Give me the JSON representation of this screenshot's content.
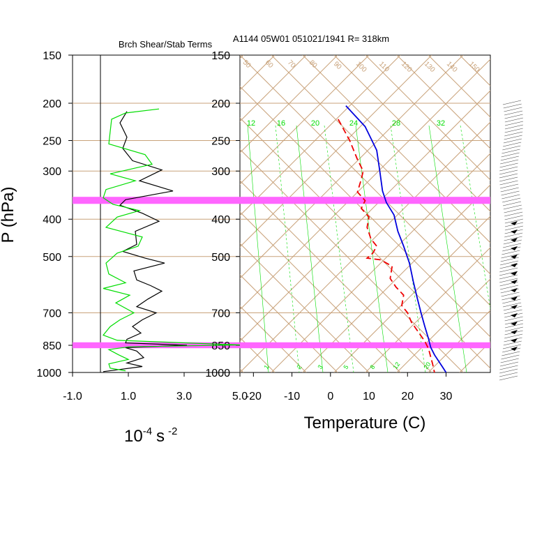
{
  "header": {
    "left_title": "Brch Shear/Stab Terms",
    "right_title": "A1144 05W01 051021/1941 R= 318km"
  },
  "axes": {
    "pressure_label": "P (hPa)",
    "pressure_ticks": [
      "150",
      "200",
      "250",
      "300",
      "400",
      "500",
      "700",
      "850",
      "1000"
    ],
    "units_label_main": "10",
    "units_label_exp": "-4",
    "units_label_s": "s",
    "units_label_s_exp": "-2",
    "temperature_label": "Temperature (C)"
  },
  "colors": {
    "grid": "#c8a27a",
    "band": "#ff66ff",
    "green": "#00dd00",
    "red": "#ee0000",
    "blue": "#0000dd",
    "black": "#000000"
  },
  "chart_data": [
    {
      "type": "line",
      "title": "Brch Shear/Stab Terms",
      "xlabel": "10^-4 s^-2",
      "ylabel": "P (hPa)",
      "xlim": [
        -1.0,
        5.0
      ],
      "x_ticks": [
        "-1.0",
        "1.0",
        "3.0",
        "5.0"
      ],
      "y_scale": "log",
      "ylim": [
        1000,
        150
      ],
      "series": [
        {
          "color": "#000000",
          "points": [
            [
              0.95,
              210
            ],
            [
              0.7,
              225
            ],
            [
              0.95,
              245
            ],
            [
              0.8,
              262
            ],
            [
              1.15,
              282
            ],
            [
              2.2,
              298
            ],
            [
              1.4,
              318
            ],
            [
              2.6,
              338
            ],
            [
              0.9,
              356
            ],
            [
              0.7,
              368
            ],
            [
              1.5,
              386
            ],
            [
              2.1,
              405
            ],
            [
              1.25,
              430
            ],
            [
              1.3,
              465
            ],
            [
              0.8,
              485
            ],
            [
              1.6,
              505
            ],
            [
              2.3,
              520
            ],
            [
              1.2,
              545
            ],
            [
              1.3,
              575
            ],
            [
              1.8,
              595
            ],
            [
              2.2,
              615
            ],
            [
              1.7,
              645
            ],
            [
              1.3,
              675
            ],
            [
              2.0,
              700
            ],
            [
              1.5,
              730
            ],
            [
              1.15,
              760
            ],
            [
              1.45,
              790
            ],
            [
              0.95,
              820
            ],
            [
              0.9,
              838
            ],
            [
              3.1,
              850
            ],
            [
              0.9,
              862
            ],
            [
              1.3,
              880
            ],
            [
              1.55,
              915
            ],
            [
              0.95,
              945
            ],
            [
              1.5,
              965
            ],
            [
              0.1,
              995
            ]
          ]
        },
        {
          "color": "#00dd00",
          "points": [
            [
              2.1,
              207
            ],
            [
              0.9,
              212
            ],
            [
              0.4,
              220
            ],
            [
              0.3,
              255
            ],
            [
              1.6,
              272
            ],
            [
              1.85,
              288
            ],
            [
              1.4,
              293
            ],
            [
              0.35,
              305
            ],
            [
              1.25,
              318
            ],
            [
              0.2,
              335
            ],
            [
              0.1,
              352
            ],
            [
              0.45,
              366
            ],
            [
              1.4,
              380
            ],
            [
              0.6,
              395
            ],
            [
              0.2,
              420
            ],
            [
              1.0,
              435
            ],
            [
              1.5,
              445
            ],
            [
              1.35,
              470
            ],
            [
              0.6,
              490
            ],
            [
              0.2,
              520
            ],
            [
              0.3,
              555
            ],
            [
              0.9,
              585
            ],
            [
              0.1,
              605
            ],
            [
              1.05,
              630
            ],
            [
              0.55,
              660
            ],
            [
              1.2,
              700
            ],
            [
              0.7,
              730
            ],
            [
              0.35,
              760
            ],
            [
              0.1,
              800
            ],
            [
              0.6,
              825
            ],
            [
              5.0,
              848
            ],
            [
              1.0,
              858
            ],
            [
              0.3,
              872
            ],
            [
              0.65,
              900
            ],
            [
              1.0,
              925
            ],
            [
              0.3,
              950
            ],
            [
              0.35,
              975
            ],
            [
              0.9,
              990
            ]
          ]
        }
      ]
    },
    {
      "type": "line",
      "title": "A1144 05W01 051021/1941 R= 318km",
      "xlabel": "Temperature (C)",
      "ylabel": "P (hPa)",
      "xlim": [
        -23.5,
        41.5
      ],
      "x_ticks": [
        "-20",
        "-10",
        "0",
        "10",
        "20",
        "30"
      ],
      "y_scale": "log",
      "ylim": [
        1000,
        150
      ],
      "series": [
        {
          "color": "#0000dd",
          "style": "solid",
          "points": [
            [
              4,
              203
            ],
            [
              9,
              230
            ],
            [
              12,
              265
            ],
            [
              12.8,
              300
            ],
            [
              13.5,
              338
            ],
            [
              14.5,
              362
            ],
            [
              16.5,
              390
            ],
            [
              17.5,
              430
            ],
            [
              19,
              470
            ],
            [
              20.5,
              520
            ],
            [
              21.5,
              580
            ],
            [
              22.5,
              640
            ],
            [
              23.5,
              700
            ],
            [
              24.5,
              760
            ],
            [
              25.5,
              820
            ],
            [
              26,
              860
            ],
            [
              27,
              900
            ],
            [
              29,
              965
            ],
            [
              30,
              1000
            ]
          ]
        },
        {
          "color": "#ee0000",
          "style": "dashed",
          "points": [
            [
              2,
              220
            ],
            [
              5,
              250
            ],
            [
              7,
              280
            ],
            [
              8.5,
              300
            ],
            [
              8,
              315
            ],
            [
              7,
              340
            ],
            [
              9,
              358
            ],
            [
              8,
              375
            ],
            [
              10,
              395
            ],
            [
              9.5,
              420
            ],
            [
              10.5,
              450
            ],
            [
              12,
              470
            ],
            [
              11,
              490
            ],
            [
              9.5,
              505
            ],
            [
              13,
              510
            ],
            [
              16,
              530
            ],
            [
              15.5,
              570
            ],
            [
              17,
              600
            ],
            [
              19,
              630
            ],
            [
              18.5,
              670
            ],
            [
              20,
              700
            ],
            [
              21,
              740
            ],
            [
              23,
              790
            ],
            [
              24.5,
              830
            ],
            [
              25.5,
              870
            ],
            [
              26,
              910
            ],
            [
              26.5,
              950
            ],
            [
              27,
              1000
            ]
          ]
        }
      ]
    }
  ],
  "isopleth_labels": {
    "theta": [
      "50",
      "60",
      "70",
      "80",
      "90",
      "100",
      "110",
      "120",
      "130",
      "140",
      "150"
    ],
    "mixing_top": [
      "12",
      "16",
      "20",
      "24",
      "28",
      "32"
    ],
    "mixing_bottom": [
      "1",
      "2",
      "3",
      "5",
      "8",
      "12",
      "20"
    ]
  },
  "highlight_bands_hpa": [
    [
      350,
      365
    ],
    [
      835,
      865
    ]
  ]
}
